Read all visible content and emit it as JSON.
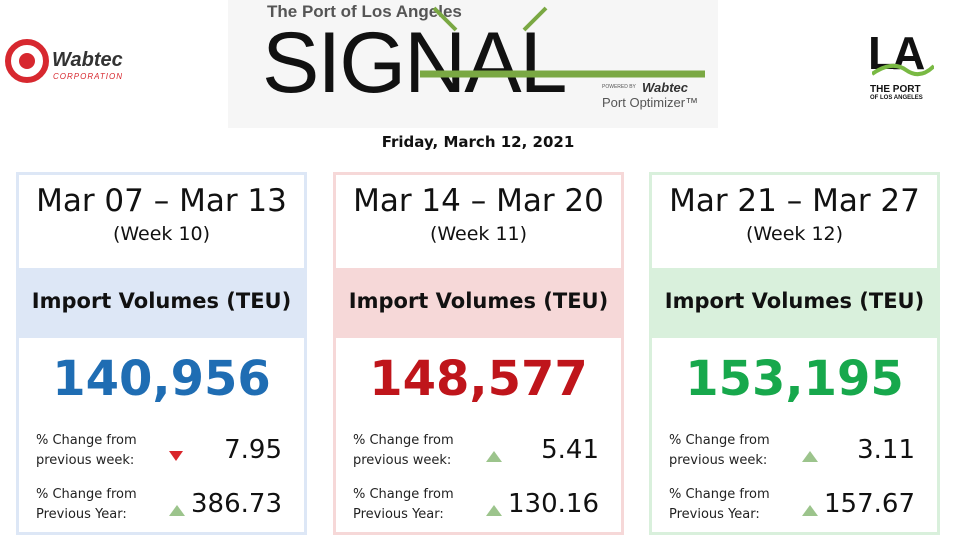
{
  "header": {
    "wabtec_logo": {
      "name": "Wabtec",
      "subtitle": "CORPORATION"
    },
    "signal": {
      "kicker": "The Port of Los Angeles",
      "title": "SIGNAL",
      "powered_by": "POWERED BY",
      "brand": "Wabtec",
      "product": "Port Optimizer™"
    },
    "la_logo": {
      "mark": "LA",
      "line1": "THE PORT",
      "line2": "OF LOS ANGELES"
    }
  },
  "date": "Friday, March 12, 2021",
  "cards": [
    {
      "range": "Mar 07 – Mar 13",
      "week": "(Week 10)",
      "metric": "Import Volumes (TEU)",
      "value": "140,956",
      "color": "#1f6db3",
      "tint": "#dde7f6",
      "changes": [
        {
          "label": [
            "% Change from",
            "previous week:"
          ],
          "direction": "down",
          "value": "7.95"
        },
        {
          "label": [
            "% Change from",
            "Previous Year:"
          ],
          "direction": "up",
          "value": "386.73"
        }
      ]
    },
    {
      "range": "Mar 14 – Mar 20",
      "week": "(Week 11)",
      "metric": "Import Volumes (TEU)",
      "value": "148,577",
      "color": "#bf151b",
      "tint": "#f6d8d8",
      "changes": [
        {
          "label": [
            "% Change from",
            "previous week:"
          ],
          "direction": "up",
          "value": "5.41"
        },
        {
          "label": [
            "% Change from",
            "Previous Year:"
          ],
          "direction": "up",
          "value": "130.16"
        }
      ]
    },
    {
      "range": "Mar 21 – Mar 27",
      "week": "(Week 12)",
      "metric": "Import Volumes (TEU)",
      "value": "153,195",
      "color": "#17a84c",
      "tint": "#d9f0dc",
      "changes": [
        {
          "label": [
            "% Change from",
            "previous week:"
          ],
          "direction": "up",
          "value": "3.11"
        },
        {
          "label": [
            "% Change from",
            "Previous Year:"
          ],
          "direction": "up",
          "value": "157.67"
        }
      ]
    }
  ]
}
